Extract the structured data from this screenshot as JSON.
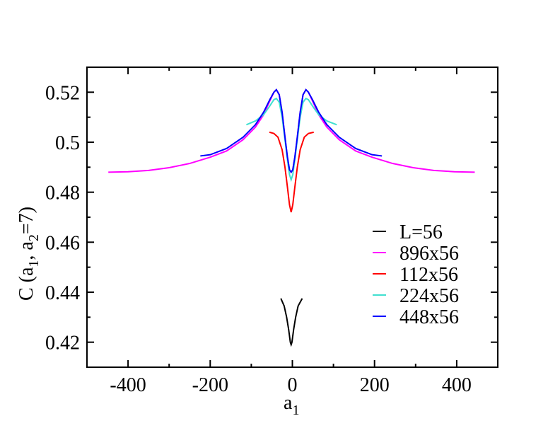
{
  "chart_data": {
    "type": "line",
    "title": "",
    "xlabel": "a",
    "xlabel_sub": "1",
    "ylabel_parts": [
      "C (a",
      "1",
      ", a",
      "2",
      "=7)"
    ],
    "xlim": [
      -500,
      500
    ],
    "ylim": [
      0.41,
      0.53
    ],
    "xticks": [
      -400,
      -200,
      0,
      200,
      400
    ],
    "xtick_labels": [
      "-400",
      "-200",
      "0",
      "200",
      "400"
    ],
    "yticks": [
      0.42,
      0.44,
      0.46,
      0.48,
      0.5,
      0.52
    ],
    "ytick_labels": [
      "0.42",
      "0.44",
      "0.46",
      "0.48",
      "0.5",
      "0.52"
    ],
    "grid": false,
    "legend_position": "bottom-right",
    "series": [
      {
        "name": "L=56",
        "color": "#000000",
        "x": [
          -28,
          -20,
          -14,
          -9,
          -5,
          -3,
          -1,
          3,
          8,
          14,
          24
        ],
        "y": [
          0.4375,
          0.4345,
          0.43,
          0.425,
          0.42,
          0.419,
          0.42,
          0.425,
          0.43,
          0.4345,
          0.4375
        ]
      },
      {
        "name": "896x56",
        "color": "#ff00ff",
        "x": [
          -448,
          -400,
          -350,
          -300,
          -250,
          -200,
          -160,
          -120,
          -90,
          -70,
          -55,
          -45,
          -39,
          -32,
          -25,
          -18,
          -12,
          -7,
          -3,
          1,
          6,
          12,
          19,
          26,
          33,
          39,
          49,
          64,
          84,
          114,
          154,
          194,
          244,
          294,
          344,
          394,
          444
        ],
        "y": [
          0.488,
          0.4882,
          0.4887,
          0.4898,
          0.4915,
          0.494,
          0.4965,
          0.501,
          0.506,
          0.511,
          0.5165,
          0.52,
          0.521,
          0.519,
          0.512,
          0.502,
          0.494,
          0.489,
          0.488,
          0.489,
          0.494,
          0.502,
          0.512,
          0.519,
          0.521,
          0.52,
          0.5165,
          0.511,
          0.506,
          0.501,
          0.4965,
          0.494,
          0.4915,
          0.4898,
          0.4887,
          0.4882,
          0.488
        ]
      },
      {
        "name": "112x56",
        "color": "#ff0000",
        "x": [
          -56,
          -45,
          -35,
          -25,
          -18,
          -12,
          -7,
          -3,
          1,
          6,
          12,
          19,
          29,
          39,
          52
        ],
        "y": [
          0.504,
          0.5035,
          0.502,
          0.497,
          0.49,
          0.482,
          0.475,
          0.472,
          0.475,
          0.482,
          0.49,
          0.497,
          0.502,
          0.5035,
          0.504
        ]
      },
      {
        "name": "224x56",
        "color": "#40e0d0",
        "x": [
          -112,
          -90,
          -70,
          -55,
          -45,
          -39,
          -32,
          -25,
          -18,
          -12,
          -7,
          -3,
          1,
          6,
          12,
          19,
          26,
          33,
          39,
          49,
          64,
          84,
          108
        ],
        "y": [
          0.507,
          0.5085,
          0.511,
          0.5145,
          0.517,
          0.5175,
          0.516,
          0.51,
          0.501,
          0.493,
          0.487,
          0.485,
          0.487,
          0.493,
          0.501,
          0.51,
          0.516,
          0.5175,
          0.517,
          0.5145,
          0.511,
          0.5085,
          0.507
        ]
      },
      {
        "name": "448x56",
        "color": "#0000ff",
        "x": [
          -224,
          -200,
          -160,
          -120,
          -90,
          -70,
          -55,
          -45,
          -39,
          -32,
          -25,
          -18,
          -12,
          -7,
          -3,
          1,
          6,
          12,
          19,
          26,
          33,
          39,
          49,
          64,
          84,
          114,
          154,
          194,
          218
        ],
        "y": [
          0.4945,
          0.495,
          0.4975,
          0.502,
          0.507,
          0.512,
          0.517,
          0.52,
          0.521,
          0.519,
          0.512,
          0.502,
          0.494,
          0.489,
          0.488,
          0.489,
          0.494,
          0.502,
          0.512,
          0.519,
          0.521,
          0.52,
          0.517,
          0.512,
          0.507,
          0.502,
          0.4975,
          0.495,
          0.4945
        ]
      }
    ]
  }
}
